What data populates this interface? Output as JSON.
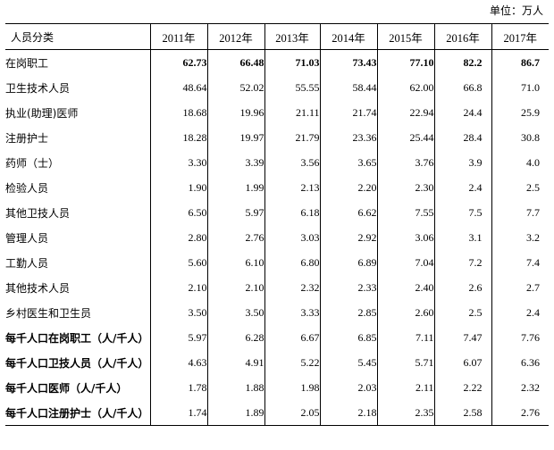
{
  "unit": "单位：万人",
  "header": {
    "category": "人员分类",
    "years": [
      "2011年",
      "2012年",
      "2013年",
      "2014年",
      "2015年",
      "2016年",
      "2017年"
    ]
  },
  "rows": [
    {
      "label": "在岗职工",
      "values": [
        "62.73",
        "66.48",
        "71.03",
        "73.43",
        "77.10",
        "82.2",
        "86.7"
      ]
    },
    {
      "label": "卫生技术人员",
      "values": [
        "48.64",
        "52.02",
        "55.55",
        "58.44",
        "62.00",
        "66.8",
        "71.0"
      ]
    },
    {
      "label": "执业(助理)医师",
      "values": [
        "18.68",
        "19.96",
        "21.11",
        "21.74",
        "22.94",
        "24.4",
        "25.9"
      ]
    },
    {
      "label": "注册护士",
      "values": [
        "18.28",
        "19.97",
        "21.79",
        "23.36",
        "25.44",
        "28.4",
        "30.8"
      ]
    },
    {
      "label": "药师（士）",
      "values": [
        "3.30",
        "3.39",
        "3.56",
        "3.65",
        "3.76",
        "3.9",
        "4.0"
      ]
    },
    {
      "label": "检验人员",
      "values": [
        "1.90",
        "1.99",
        "2.13",
        "2.20",
        "2.30",
        "2.4",
        "2.5"
      ]
    },
    {
      "label": "其他卫技人员",
      "values": [
        "6.50",
        "5.97",
        "6.18",
        "6.62",
        "7.55",
        "7.5",
        "7.7"
      ]
    },
    {
      "label": "管理人员",
      "values": [
        "2.80",
        "2.76",
        "3.03",
        "2.92",
        "3.06",
        "3.1",
        "3.2"
      ]
    },
    {
      "label": "工勤人员",
      "values": [
        "5.60",
        "6.10",
        "6.80",
        "6.89",
        "7.04",
        "7.2",
        "7.4"
      ]
    },
    {
      "label": "其他技术人员",
      "values": [
        "2.10",
        "2.10",
        "2.32",
        "2.33",
        "2.40",
        "2.6",
        "2.7"
      ]
    },
    {
      "label": "乡村医生和卫生员",
      "values": [
        "3.50",
        "3.50",
        "3.33",
        "2.85",
        "2.60",
        "2.5",
        "2.4"
      ]
    },
    {
      "label": "每千人口在岗职工（人/千人）",
      "values": [
        "5.97",
        "6.28",
        "6.67",
        "6.85",
        "7.11",
        "7.47",
        "7.76"
      ]
    },
    {
      "label": "每千人口卫技人员（人/千人）",
      "values": [
        "4.63",
        "4.91",
        "5.22",
        "5.45",
        "5.71",
        "6.07",
        "6.36"
      ]
    },
    {
      "label": "每千人口医师（人/千人）",
      "values": [
        "1.78",
        "1.88",
        "1.98",
        "2.03",
        "2.11",
        "2.22",
        "2.32"
      ]
    },
    {
      "label": "每千人口注册护士（人/千人）",
      "values": [
        "1.74",
        "1.89",
        "2.05",
        "2.18",
        "2.35",
        "2.58",
        "2.76"
      ]
    }
  ]
}
